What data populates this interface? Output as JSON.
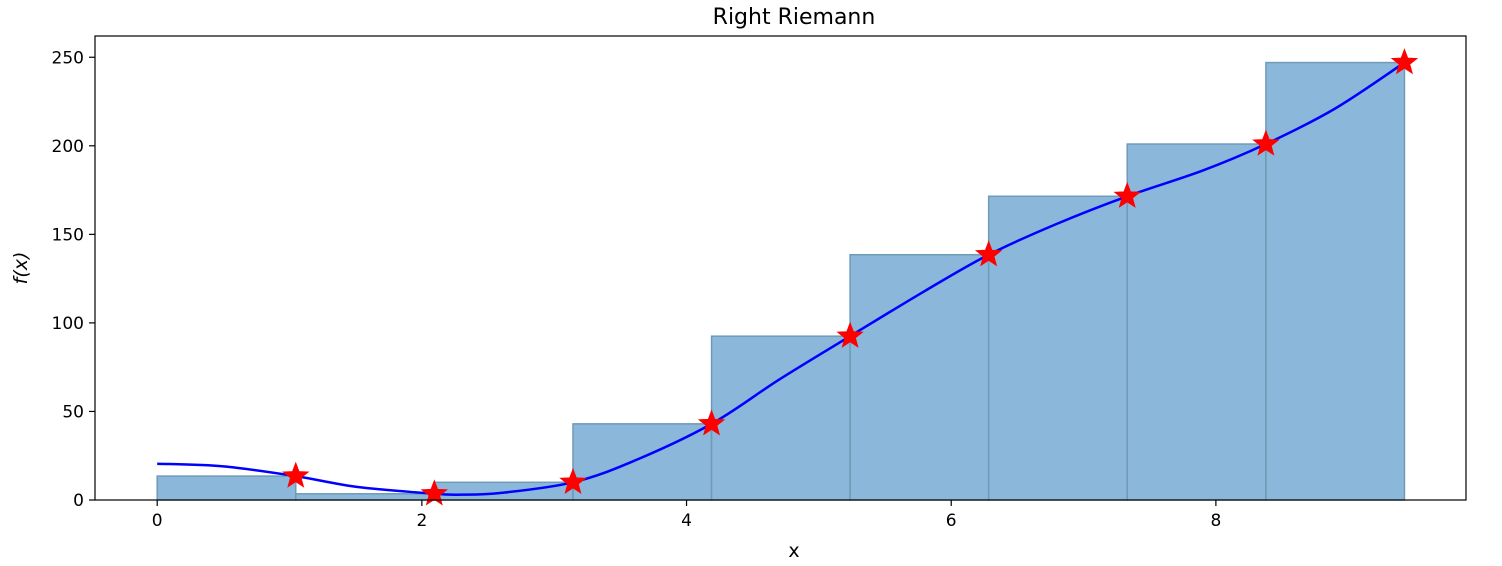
{
  "chart_data": {
    "type": "bar",
    "title": "Right Riemann",
    "xlabel": "x",
    "ylabel": "f(x)",
    "xlim": [
      -0.47,
      9.89
    ],
    "ylim": [
      0,
      262
    ],
    "xticks": [
      0,
      2,
      4,
      6,
      8
    ],
    "yticks": [
      0,
      50,
      100,
      150,
      200,
      250
    ],
    "bar_width": 1.047,
    "bars": {
      "x_left": [
        0.0,
        1.047,
        2.094,
        3.142,
        4.189,
        5.236,
        6.283,
        7.33,
        8.378
      ],
      "values": [
        13.5,
        3.5,
        10.0,
        43.0,
        92.5,
        138.5,
        171.5,
        201.0,
        247.0
      ],
      "color": "#8bb8da",
      "edge_color": "#6f9ab8"
    },
    "markers": {
      "x": [
        1.047,
        2.094,
        3.142,
        4.189,
        5.236,
        6.283,
        7.33,
        8.378,
        9.425
      ],
      "y": [
        13.5,
        3.5,
        10.0,
        43.0,
        92.5,
        138.5,
        171.5,
        201.0,
        247.0
      ],
      "shape": "star",
      "color": "#ff0000"
    },
    "curve": {
      "x": [
        0,
        0.5,
        1.047,
        1.5,
        2.094,
        2.3,
        2.6,
        3.142,
        3.6,
        4.189,
        4.7,
        5.236,
        5.8,
        6.283,
        6.8,
        7.33,
        7.9,
        8.378,
        8.9,
        9.425
      ],
      "y": [
        20.5,
        19,
        13.5,
        7.5,
        3.5,
        3,
        4,
        10.0,
        22,
        43.0,
        68,
        92.5,
        118,
        138.5,
        156,
        171.5,
        186,
        201.0,
        221,
        247.0
      ],
      "color": "#0000ff"
    },
    "grid": false,
    "legend": "none"
  }
}
